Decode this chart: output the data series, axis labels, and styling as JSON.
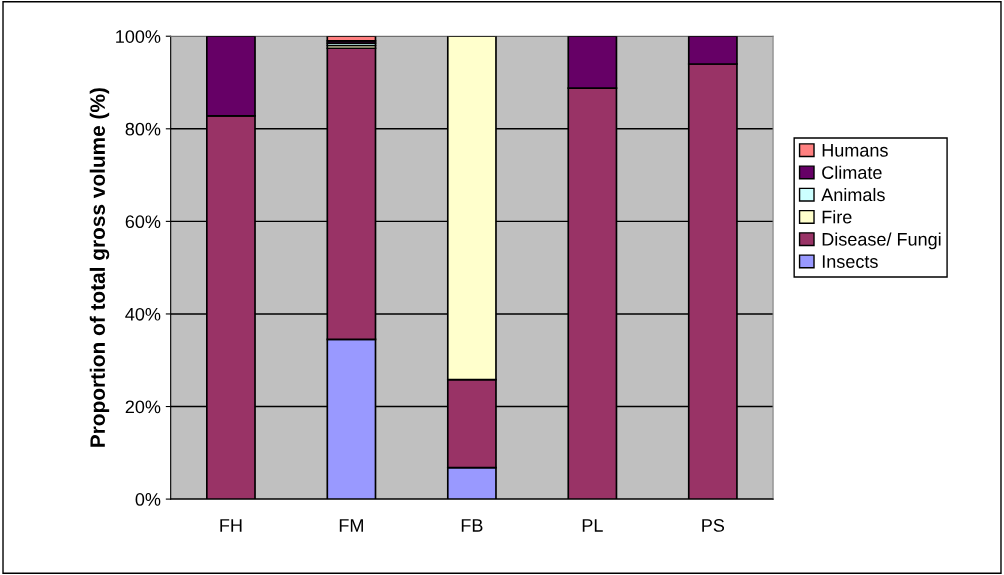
{
  "chart_data": {
    "type": "bar",
    "stacked": true,
    "ylabel": "Proportion of total gross volume (%)",
    "categories": [
      "FH",
      "FM",
      "FB",
      "PL",
      "PS"
    ],
    "series": [
      {
        "name": "Insects",
        "color": "#9999ff",
        "values": [
          null,
          34.5,
          6.8,
          null,
          null
        ]
      },
      {
        "name": "Disease/ Fungi",
        "color": "#993366",
        "values": [
          82.8,
          62.9,
          19.0,
          88.8,
          94.0
        ]
      },
      {
        "name": "Fire",
        "color": "#ffffcc",
        "values": [
          null,
          0.6,
          74.2,
          null,
          null
        ]
      },
      {
        "name": "Animals",
        "color": "#ccffff",
        "values": [
          null,
          0.5,
          null,
          null,
          null
        ]
      },
      {
        "name": "Climate",
        "color": "#660066",
        "values": [
          17.2,
          0.5,
          null,
          11.2,
          6.0
        ]
      },
      {
        "name": "Humans",
        "color": "#ff8080",
        "values": [
          null,
          1.0,
          null,
          null,
          null
        ]
      }
    ],
    "ylim": [
      0,
      100
    ],
    "yticks": [
      {
        "value": 0,
        "label": "0%"
      },
      {
        "value": 20,
        "label": "20%"
      },
      {
        "value": 40,
        "label": "40%"
      },
      {
        "value": 60,
        "label": "60%"
      },
      {
        "value": 80,
        "label": "80%"
      },
      {
        "value": 100,
        "label": "100%"
      }
    ],
    "grid": "y",
    "legend": "right"
  }
}
